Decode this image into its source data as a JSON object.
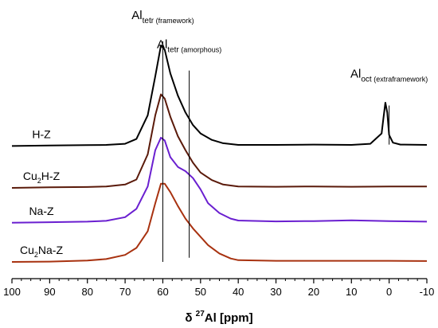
{
  "chart_data": {
    "type": "line",
    "xlabel_prefix": "δ ",
    "xlabel_sup": "27",
    "xlabel_main": "Al [ppm]",
    "xlim": [
      100,
      -10
    ],
    "x_ticks": [
      "100",
      "90",
      "80",
      "70",
      "60",
      "50",
      "40",
      "30",
      "20",
      "10",
      "0",
      "-10"
    ],
    "x_tick_values": [
      100,
      90,
      80,
      70,
      60,
      50,
      40,
      30,
      20,
      10,
      0,
      -10
    ],
    "y_axis_visible": false,
    "grid": false,
    "series": [
      {
        "name": "H-Z",
        "label_main": "H-Z",
        "label_sub": "",
        "label_rest": "",
        "color": "#000000",
        "baseline": 0.0,
        "x": [
          100,
          90,
          80,
          75,
          70,
          67,
          64,
          62,
          60.5,
          59.5,
          58,
          56,
          54,
          52,
          50,
          47,
          44,
          40,
          30,
          20,
          10,
          5,
          2,
          1.5,
          1,
          0.5,
          0,
          -1,
          -3,
          -10
        ],
        "values": [
          0,
          0.02,
          0.03,
          0.04,
          0.08,
          0.25,
          1.1,
          2.5,
          3.6,
          3.45,
          2.6,
          1.8,
          1.2,
          0.75,
          0.45,
          0.22,
          0.1,
          0.04,
          0.04,
          0.05,
          0.04,
          0.08,
          0.45,
          1.0,
          1.55,
          1.2,
          0.4,
          0.12,
          0.05,
          0.04
        ]
      },
      {
        "name": "Cu2H-Z",
        "label_main": "Cu",
        "label_sub": "2",
        "label_rest": "H-Z",
        "color": "#5a1a0a",
        "baseline": -1.5,
        "x": [
          100,
          90,
          80,
          75,
          70,
          67,
          64,
          62,
          60.5,
          59.5,
          58,
          56,
          54,
          52,
          50,
          47,
          44,
          40,
          30,
          20,
          10,
          0,
          -10
        ],
        "values": [
          0,
          0.02,
          0.03,
          0.05,
          0.12,
          0.3,
          1.2,
          2.6,
          3.35,
          3.2,
          2.55,
          1.85,
          1.35,
          0.9,
          0.55,
          0.28,
          0.12,
          0.05,
          0.04,
          0.05,
          0.04,
          0.05,
          0.05
        ]
      },
      {
        "name": "Na-Z",
        "label_main": "Na-Z",
        "label_sub": "",
        "label_rest": "",
        "color": "#6a1fd0",
        "baseline": -2.75,
        "x": [
          100,
          90,
          80,
          75,
          70,
          67,
          64,
          62,
          60.5,
          59.5,
          58,
          56,
          54,
          52,
          50,
          48,
          45,
          42,
          40,
          30,
          20,
          10,
          0,
          -10
        ],
        "values": [
          0,
          0.02,
          0.04,
          0.07,
          0.2,
          0.5,
          1.3,
          2.6,
          3.05,
          2.95,
          2.35,
          2.0,
          1.85,
          1.6,
          1.2,
          0.7,
          0.35,
          0.15,
          0.08,
          0.05,
          0.06,
          0.09,
          0.06,
          0.04
        ]
      },
      {
        "name": "Cu2Na-Z",
        "label_main": "Cu",
        "label_sub": "2",
        "label_rest": "Na-Z",
        "color": "#a83210",
        "baseline": -4.15,
        "x": [
          100,
          90,
          80,
          75,
          70,
          67,
          64,
          62,
          60.5,
          59.5,
          58,
          56,
          54,
          52,
          50,
          48,
          45,
          42,
          40,
          30,
          20,
          10,
          0,
          -10
        ],
        "values": [
          0,
          0.01,
          0.05,
          0.1,
          0.25,
          0.5,
          1.1,
          2.1,
          2.8,
          2.8,
          2.5,
          2.0,
          1.55,
          1.2,
          0.9,
          0.6,
          0.3,
          0.12,
          0.06,
          0.04,
          0.04,
          0.04,
          0.04,
          0.03
        ]
      }
    ],
    "annotations": [
      {
        "main": "Al",
        "sub": "tetr",
        "note": " (framework)",
        "x": 60,
        "line_top": 3.75,
        "line_bottom": -4.15,
        "label_level": 4.55
      },
      {
        "main": "Al",
        "sub": "tetr",
        "note": " (amorphous)",
        "x": 53,
        "line_top": 2.7,
        "line_bottom": -4.0,
        "label_level": 3.5
      },
      {
        "main": "Al",
        "sub": "oct",
        "note": " (extraframework)",
        "x": 0,
        "line_top": 1.45,
        "line_bottom": 0.05,
        "label_level": 2.45
      }
    ],
    "ylim": [
      -4.75,
      5.0
    ]
  }
}
